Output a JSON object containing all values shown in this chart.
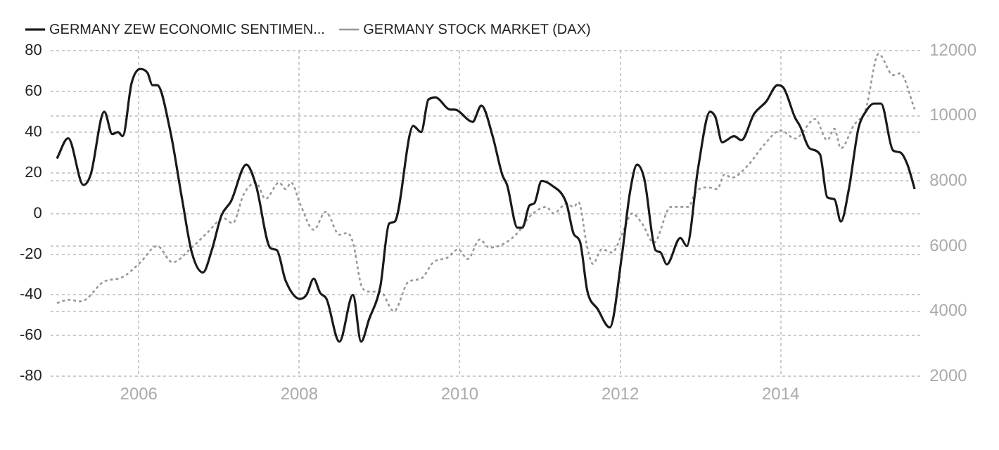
{
  "chart_data": {
    "type": "line",
    "legend": "top left",
    "grid": true,
    "marker": "none",
    "xlim": [
      2004.9,
      2015.75
    ],
    "xticks": [
      2006,
      2008,
      2010,
      2012,
      2014
    ],
    "ylim": [
      -80,
      80
    ],
    "yticks": [
      -80,
      -60,
      -40,
      -20,
      0,
      20,
      40,
      60,
      80
    ],
    "y2lim": [
      2000,
      12000
    ],
    "y2ticks": [
      2000,
      4000,
      6000,
      8000,
      10000,
      12000
    ],
    "series": [
      {
        "name": "GERMANY ZEW ECONOMIC SENTIMEN...",
        "color": "#1a1a1a",
        "line_style": "solid",
        "x": [
          2004.98,
          2005.12,
          2005.31,
          2005.4,
          2005.57,
          2005.67,
          2005.74,
          2005.8,
          2005.91,
          2006.02,
          2006.11,
          2006.17,
          2006.23,
          2006.39,
          2006.54,
          2006.66,
          2006.8,
          2006.91,
          2007.03,
          2007.15,
          2007.34,
          2007.46,
          2007.64,
          2007.72,
          2007.83,
          2008.01,
          2008.09,
          2008.18,
          2008.26,
          2008.34,
          2008.5,
          2008.67,
          2008.77,
          2008.87,
          2009.01,
          2009.12,
          2009.19,
          2009.42,
          2009.52,
          2009.61,
          2009.7,
          2009.88,
          2009.94,
          2010.16,
          2010.27,
          2010.41,
          2010.53,
          2010.59,
          2010.72,
          2010.78,
          2010.87,
          2010.93,
          2011.02,
          2011.14,
          2011.33,
          2011.42,
          2011.5,
          2011.59,
          2011.72,
          2011.87,
          2012.02,
          2012.12,
          2012.21,
          2012.3,
          2012.44,
          2012.5,
          2012.58,
          2012.75,
          2012.83,
          2012.97,
          2013.12,
          2013.19,
          2013.27,
          2013.42,
          2013.51,
          2013.67,
          2013.82,
          2013.96,
          2014.03,
          2014.18,
          2014.24,
          2014.36,
          2014.49,
          2014.58,
          2014.67,
          2014.75,
          2014.85,
          2014.97,
          2015.06,
          2015.16,
          2015.25,
          2015.4,
          2015.49,
          2015.58,
          2015.67
        ],
        "values": [
          27,
          37,
          14,
          19,
          50,
          39,
          40,
          38,
          64,
          71,
          69,
          63,
          63,
          41,
          7,
          -19,
          -29,
          -18,
          -1,
          6,
          24,
          14,
          -17,
          -18,
          -33,
          -42,
          -40,
          -32,
          -39,
          -42,
          -63,
          -40,
          -63,
          -52,
          -36,
          -5,
          -4,
          43,
          40,
          56,
          57,
          51,
          51,
          45,
          53,
          38,
          19,
          14,
          -7,
          -7,
          4,
          5,
          16,
          14,
          5,
          -10,
          -14,
          -38,
          -47,
          -56,
          -21,
          10,
          24,
          17,
          -18,
          -19,
          -25,
          -12,
          -16,
          22,
          50,
          47,
          35,
          38,
          36,
          49,
          55,
          63,
          62,
          47,
          43,
          32,
          29,
          8,
          7,
          -4,
          12,
          42,
          50,
          54,
          54,
          31,
          30,
          24,
          12
        ]
      },
      {
        "name": "GERMANY STOCK MARKET (DAX)",
        "color": "#999999",
        "line_style": "dotted",
        "axis": "y2",
        "x": [
          2004.98,
          2005.13,
          2005.28,
          2005.56,
          2005.8,
          2006.02,
          2006.23,
          2006.42,
          2006.66,
          2006.85,
          2007.06,
          2007.17,
          2007.31,
          2007.46,
          2007.58,
          2007.75,
          2007.83,
          2007.9,
          2008.01,
          2008.18,
          2008.33,
          2008.5,
          2008.6,
          2008.67,
          2008.78,
          2008.87,
          2009.01,
          2009.18,
          2009.36,
          2009.52,
          2009.67,
          2009.85,
          2009.98,
          2010.1,
          2010.25,
          2010.37,
          2010.57,
          2010.72,
          2010.87,
          2011.08,
          2011.17,
          2011.33,
          2011.42,
          2011.48,
          2011.59,
          2011.66,
          2011.77,
          2011.9,
          2012.02,
          2012.15,
          2012.27,
          2012.42,
          2012.63,
          2012.85,
          2012.94,
          2013.09,
          2013.21,
          2013.3,
          2013.39,
          2013.6,
          2013.79,
          2014,
          2014.18,
          2014.43,
          2014.58,
          2014.67,
          2014.75,
          2014.91,
          2015.06,
          2015.22,
          2015.4,
          2015.49,
          2015.67
        ],
        "values": [
          4250,
          4350,
          4300,
          4900,
          5050,
          5500,
          6000,
          5500,
          5950,
          6400,
          6850,
          6700,
          7600,
          7950,
          7450,
          7950,
          7750,
          7950,
          7300,
          6500,
          7050,
          6350,
          6400,
          6100,
          4750,
          4600,
          4600,
          4000,
          4900,
          5000,
          5500,
          5650,
          5900,
          5600,
          6200,
          5950,
          6100,
          6400,
          6900,
          7200,
          7000,
          7300,
          7200,
          7350,
          5950,
          5450,
          5900,
          5800,
          6350,
          7000,
          6700,
          6100,
          7200,
          7200,
          7650,
          7800,
          7750,
          8200,
          8100,
          8500,
          9100,
          9550,
          9300,
          9900,
          9250,
          9600,
          9000,
          9700,
          10200,
          11900,
          11250,
          11300,
          10200
        ]
      }
    ]
  }
}
